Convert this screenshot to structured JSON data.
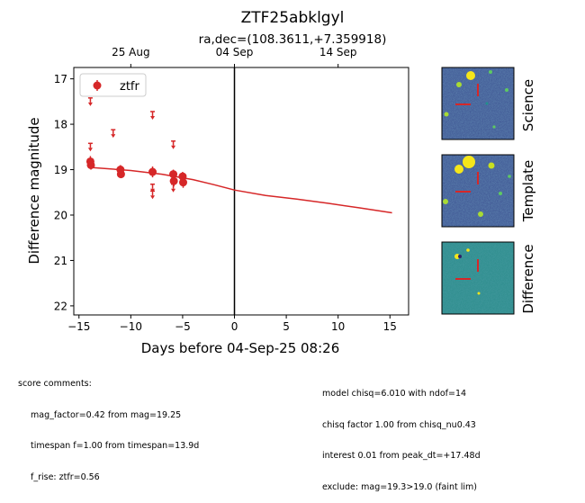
{
  "chart_data": {
    "type": "scatter",
    "title": "ZTF25abklgyl",
    "subtitle": "ra,dec=(108.3611,+7.359918)",
    "xlabel": "Days before 04-Sep-25 08:26",
    "ylabel": "Difference magnitude",
    "xlim": [
      -15.5,
      16.8
    ],
    "ylim": [
      22.2,
      16.75
    ],
    "x_ticks": [
      -15,
      -10,
      -5,
      0,
      5,
      10,
      15
    ],
    "y_ticks": [
      17,
      18,
      19,
      20,
      21,
      22
    ],
    "top_axis_ticks": [
      {
        "label": "25 Aug",
        "x": -10.0
      },
      {
        "label": "04 Sep",
        "x": 0.0
      },
      {
        "label": "14 Sep",
        "x": 10.0
      }
    ],
    "reference_line_x": 0,
    "legend": {
      "position": "top-left",
      "entries": [
        "ztfr"
      ]
    },
    "grid": false,
    "series": [
      {
        "name": "ztfr",
        "color": "#d62728",
        "detections": [
          {
            "x": -13.9,
            "y": 18.82,
            "err": 0.12
          },
          {
            "x": -13.85,
            "y": 18.9,
            "err": 0.1
          },
          {
            "x": -11.0,
            "y": 19.0,
            "err": 0.1
          },
          {
            "x": -10.95,
            "y": 19.1,
            "err": 0.08
          },
          {
            "x": -7.9,
            "y": 19.05,
            "err": 0.12
          },
          {
            "x": -5.9,
            "y": 19.1,
            "err": 0.1
          },
          {
            "x": -5.85,
            "y": 19.25,
            "err": 0.12
          },
          {
            "x": -5.0,
            "y": 19.15,
            "err": 0.1
          },
          {
            "x": -4.95,
            "y": 19.28,
            "err": 0.12
          }
        ],
        "upper_limits": [
          {
            "x": -13.9,
            "y": 17.5
          },
          {
            "x": -13.9,
            "y": 18.5
          },
          {
            "x": -11.7,
            "y": 18.2
          },
          {
            "x": -7.9,
            "y": 17.8
          },
          {
            "x": -7.9,
            "y": 19.4
          },
          {
            "x": -7.9,
            "y": 19.55
          },
          {
            "x": -5.9,
            "y": 18.45
          },
          {
            "x": -5.9,
            "y": 19.4
          }
        ],
        "model_curve": [
          {
            "x": -14.0,
            "y": 18.95
          },
          {
            "x": -10.0,
            "y": 19.02
          },
          {
            "x": -7.0,
            "y": 19.1
          },
          {
            "x": -4.0,
            "y": 19.22
          },
          {
            "x": -2.0,
            "y": 19.33
          },
          {
            "x": 0.0,
            "y": 19.45
          },
          {
            "x": 3.0,
            "y": 19.57
          },
          {
            "x": 6.0,
            "y": 19.65
          },
          {
            "x": 9.0,
            "y": 19.74
          },
          {
            "x": 12.0,
            "y": 19.84
          },
          {
            "x": 15.2,
            "y": 19.95
          }
        ]
      }
    ]
  },
  "cutouts": [
    {
      "label": "Science"
    },
    {
      "label": "Template"
    },
    {
      "label": "Difference"
    }
  ],
  "score_comments": {
    "heading": "score comments:",
    "lines": [
      "mag_factor=0.42 from mag=19.25",
      "timespan f=1.00 from timespan=13.9d",
      "f_rise: ztfr=0.56"
    ]
  },
  "model_comments": [
    "model chisq=6.010 with ndof=14",
    "chisq factor 1.00 from chisq_nu0.43",
    "interest 0.01 from peak_dt=+17.48d",
    "exclude: mag=19.3>19.0 (faint lim)"
  ],
  "colors": {
    "series": "#d62728",
    "cutout_low": "#3b4f8c",
    "cutout_bright": "#f5e61a"
  }
}
